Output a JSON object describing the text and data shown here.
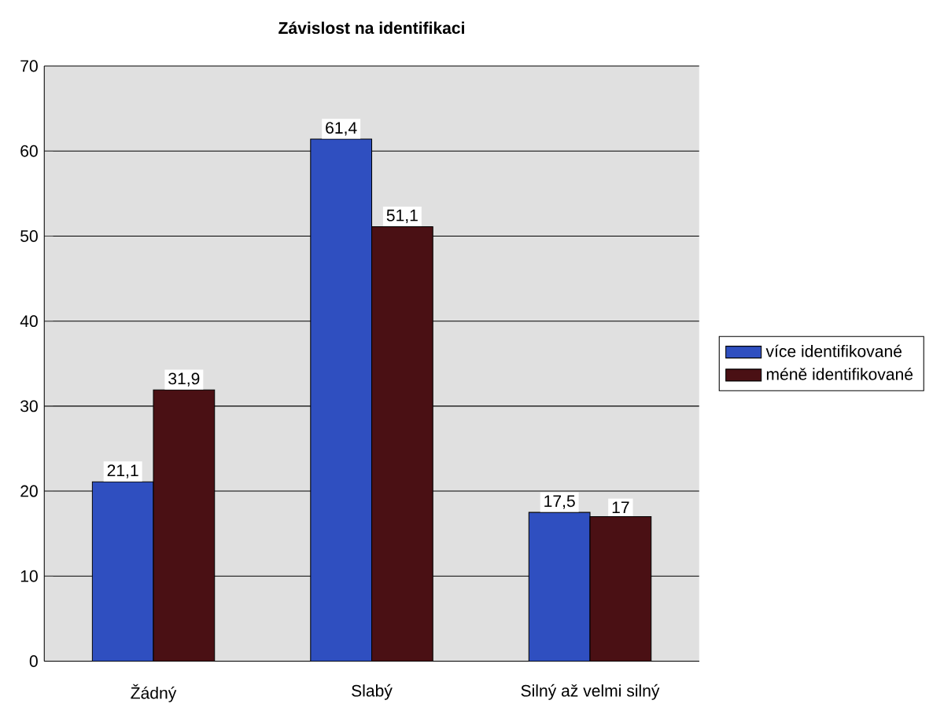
{
  "chart_data": {
    "type": "bar",
    "title": "Závislost na identifikaci",
    "categories": [
      "Žádný",
      "Slabý",
      "Silný až velmi silný"
    ],
    "series": [
      {
        "name": "více identifikované",
        "color": "#2f4fc0",
        "values": [
          21.1,
          61.4,
          17.5
        ],
        "value_labels": [
          "21,1",
          "61,4",
          "17,5"
        ]
      },
      {
        "name": "méně identifikované",
        "color": "#4a1014",
        "values": [
          31.9,
          51.1,
          17
        ],
        "value_labels": [
          "31,9",
          "51,1",
          "17"
        ]
      }
    ],
    "ylim": [
      0,
      70
    ],
    "yticks": [
      0,
      10,
      20,
      30,
      40,
      50,
      60,
      70
    ],
    "grid": "y",
    "legend": "right"
  }
}
